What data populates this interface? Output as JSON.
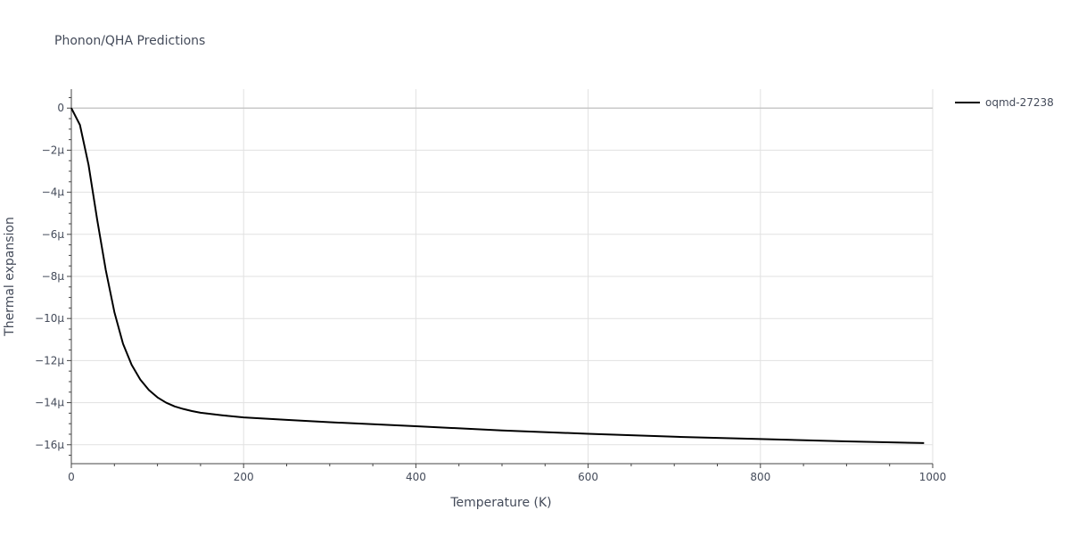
{
  "chart_data": {
    "type": "line",
    "title": "Phonon/QHA Predictions",
    "xlabel": "Temperature (K)",
    "ylabel": "Thermal expansion",
    "xlim": [
      0,
      1000
    ],
    "ylim": [
      -1.69e-05,
      9e-07
    ],
    "x_ticks": [
      0,
      200,
      400,
      600,
      800,
      1000
    ],
    "x_tick_labels": [
      "0",
      "200",
      "400",
      "600",
      "800",
      "1000"
    ],
    "y_ticks": [
      0,
      -2e-06,
      -4e-06,
      -6e-06,
      -8e-06,
      -1e-05,
      -1.2e-05,
      -1.4e-05,
      -1.6e-05
    ],
    "y_tick_labels": [
      "0",
      "−2μ",
      "−4μ",
      "−6μ",
      "−8μ",
      "−10μ",
      "−12μ",
      "−14μ",
      "−16μ"
    ],
    "grid": true,
    "legend_position": "top-right",
    "series": [
      {
        "name": "oqmd-27238",
        "color": "#000000",
        "x": [
          0,
          10,
          20,
          30,
          40,
          50,
          60,
          70,
          80,
          90,
          100,
          110,
          120,
          130,
          140,
          150,
          175,
          200,
          250,
          300,
          400,
          500,
          600,
          700,
          800,
          900,
          990
        ],
        "y": [
          0,
          -8e-07,
          -2.7e-06,
          -5.3e-06,
          -7.7e-06,
          -9.7e-06,
          -1.12e-05,
          -1.22e-05,
          -1.29e-05,
          -1.34e-05,
          -1.375e-05,
          -1.4e-05,
          -1.418e-05,
          -1.43e-05,
          -1.44e-05,
          -1.448e-05,
          -1.46e-05,
          -1.47e-05,
          -1.482e-05,
          -1.493e-05,
          -1.512e-05,
          -1.532e-05,
          -1.548e-05,
          -1.562e-05,
          -1.573e-05,
          -1.584e-05,
          -1.592e-05
        ]
      }
    ]
  }
}
